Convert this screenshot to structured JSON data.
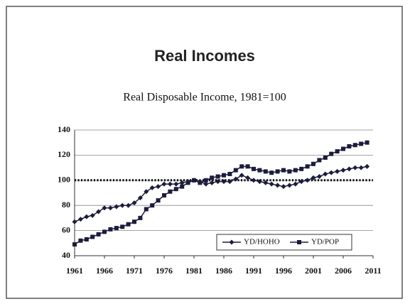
{
  "chart_data": {
    "type": "line",
    "title": "Real Incomes",
    "subtitle": "Real Disposable Income, 1981=100",
    "x": [
      1961,
      1962,
      1963,
      1964,
      1965,
      1966,
      1967,
      1968,
      1969,
      1970,
      1971,
      1972,
      1973,
      1974,
      1975,
      1976,
      1977,
      1978,
      1979,
      1980,
      1981,
      1982,
      1983,
      1984,
      1985,
      1986,
      1987,
      1988,
      1989,
      1990,
      1991,
      1992,
      1993,
      1994,
      1995,
      1996,
      1997,
      1998,
      1999,
      2000,
      2001,
      2002,
      2003,
      2004,
      2005,
      2006,
      2007,
      2008,
      2009,
      2010
    ],
    "series": [
      {
        "name": "YD/HOHO",
        "color": "#1c1c3c",
        "marker": "diamond",
        "values": [
          67,
          69,
          71,
          72,
          75,
          78,
          78,
          79,
          80,
          80,
          82,
          86,
          91,
          94,
          95,
          97,
          97,
          97,
          98,
          99,
          100,
          99,
          97,
          98,
          99,
          99,
          99,
          101,
          104,
          102,
          100,
          99,
          98,
          97,
          96,
          95,
          96,
          97,
          99,
          100,
          102,
          103,
          105,
          106,
          107,
          108,
          109,
          110,
          110,
          111
        ]
      },
      {
        "name": "YD/POP",
        "color": "#1c1c3c",
        "marker": "square",
        "values": [
          49,
          52,
          53,
          55,
          57,
          59,
          61,
          62,
          63,
          65,
          67,
          70,
          77,
          80,
          84,
          88,
          91,
          93,
          95,
          98,
          100,
          98,
          100,
          102,
          103,
          104,
          105,
          108,
          111,
          111,
          109,
          108,
          107,
          106,
          107,
          108,
          107,
          108,
          109,
          111,
          113,
          116,
          118,
          121,
          123,
          125,
          127,
          128,
          129,
          130
        ]
      }
    ],
    "reference_line": 100,
    "xlim": [
      1961,
      2011
    ],
    "xticks": [
      1961,
      1966,
      1971,
      1976,
      1981,
      1986,
      1991,
      1996,
      2001,
      2006,
      2011
    ],
    "ylim": [
      40,
      140
    ],
    "yticks": [
      40,
      60,
      80,
      100,
      120,
      140
    ],
    "grid": true,
    "legend": "lower right"
  }
}
